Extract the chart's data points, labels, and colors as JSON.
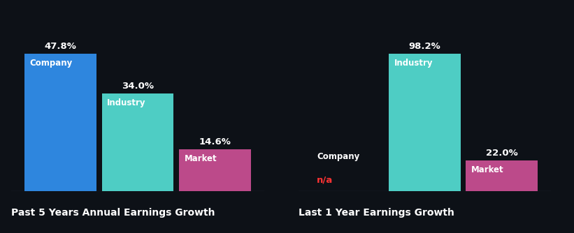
{
  "background_color": "#0d1117",
  "chart1": {
    "title": "Past 5 Years Annual Earnings Growth",
    "bars": [
      {
        "label": "Company",
        "value": 47.8,
        "color": "#2e86de"
      },
      {
        "label": "Industry",
        "value": 34.0,
        "color": "#4ecdc4"
      },
      {
        "label": "Market",
        "value": 14.6,
        "color": "#bc4a8a"
      }
    ]
  },
  "chart2": {
    "title": "Last 1 Year Earnings Growth",
    "bars": [
      {
        "label": "Company",
        "value": null,
        "display": "n/a",
        "color": null
      },
      {
        "label": "Industry",
        "value": 98.2,
        "color": "#4ecdc4"
      },
      {
        "label": "Market",
        "value": 22.0,
        "color": "#bc4a8a"
      }
    ]
  },
  "label_color": "#ffffff",
  "na_color": "#ff3333",
  "title_color": "#ffffff",
  "value_fontsize": 9.5,
  "label_fontsize": 8.5,
  "title_fontsize": 10.0
}
